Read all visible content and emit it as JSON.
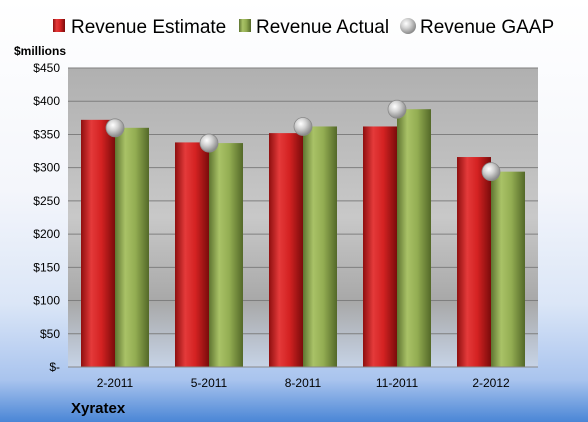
{
  "chart_data": {
    "type": "bar",
    "y_unit_label": "$millions",
    "company": "Xyratex",
    "categories": [
      "2-2011",
      "5-2011",
      "8-2011",
      "11-2011",
      "2-2012"
    ],
    "series": [
      {
        "name": "Revenue Estimate",
        "kind": "bar",
        "color": "#cc1f1f",
        "values": [
          372,
          338,
          352,
          362,
          316
        ]
      },
      {
        "name": "Revenue Actual",
        "kind": "bar",
        "color": "#8ba34a",
        "values": [
          360,
          337,
          362,
          388,
          294
        ]
      },
      {
        "name": "Revenue GAAP",
        "kind": "marker",
        "color": "#b8b8b8",
        "values": [
          360,
          337,
          362,
          388,
          294
        ]
      }
    ],
    "ylim": [
      0,
      450
    ],
    "y_ticks": [
      "$-",
      "$50",
      "$100",
      "$150",
      "$200",
      "$250",
      "$300",
      "$350",
      "$400",
      "$450"
    ],
    "y_tick_values": [
      0,
      50,
      100,
      150,
      200,
      250,
      300,
      350,
      400,
      450
    ],
    "grid": true,
    "legend_position": "top"
  }
}
